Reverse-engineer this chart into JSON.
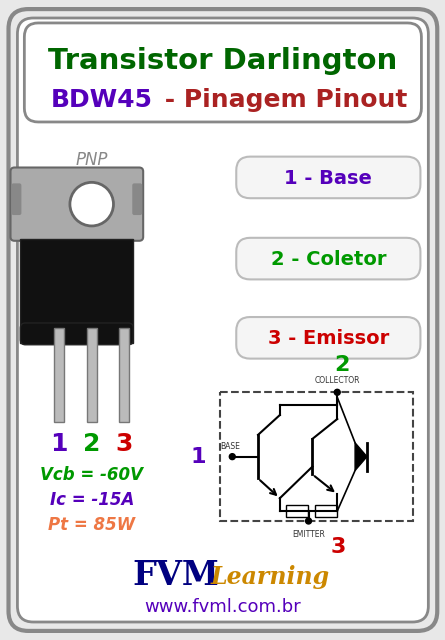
{
  "bg_color": "#e8e8e8",
  "outer_border_color": "#888888",
  "inner_bg_color": "#ffffff",
  "title1": "Transistor Darlington",
  "title1_color": "#006600",
  "title2_part1": "BDW45",
  "title2_part1_color": "#5500bb",
  "title2_part2": " - Pinagem Pinout",
  "title2_part2_color": "#aa2222",
  "pnp_label": "PNP",
  "pnp_color": "#888888",
  "pin_labels": [
    "1",
    "2",
    "3"
  ],
  "pin_colors": [
    "#5500bb",
    "#009900",
    "#cc0000"
  ],
  "pin_names": [
    "1 - Base",
    "2 - Coletor",
    "3 - Emissor"
  ],
  "pin_name_colors": [
    "#5500bb",
    "#009900",
    "#cc0000"
  ],
  "specs": [
    "Vcb = -60V",
    "Ic = -15A",
    "Pt = 85W"
  ],
  "spec_colors": [
    "#009900",
    "#5500bb",
    "#ee7744"
  ],
  "fvm_color": "#000080",
  "learning_color": "#cc8800",
  "website": "www.fvml.com.br",
  "website_color": "#5500bb",
  "collector_label": "COLLECTOR",
  "base_label": "BASE",
  "emitter_label": "EMITTER",
  "num2_color": "#009900",
  "num1_color": "#5500bb",
  "num3_color": "#cc0000"
}
